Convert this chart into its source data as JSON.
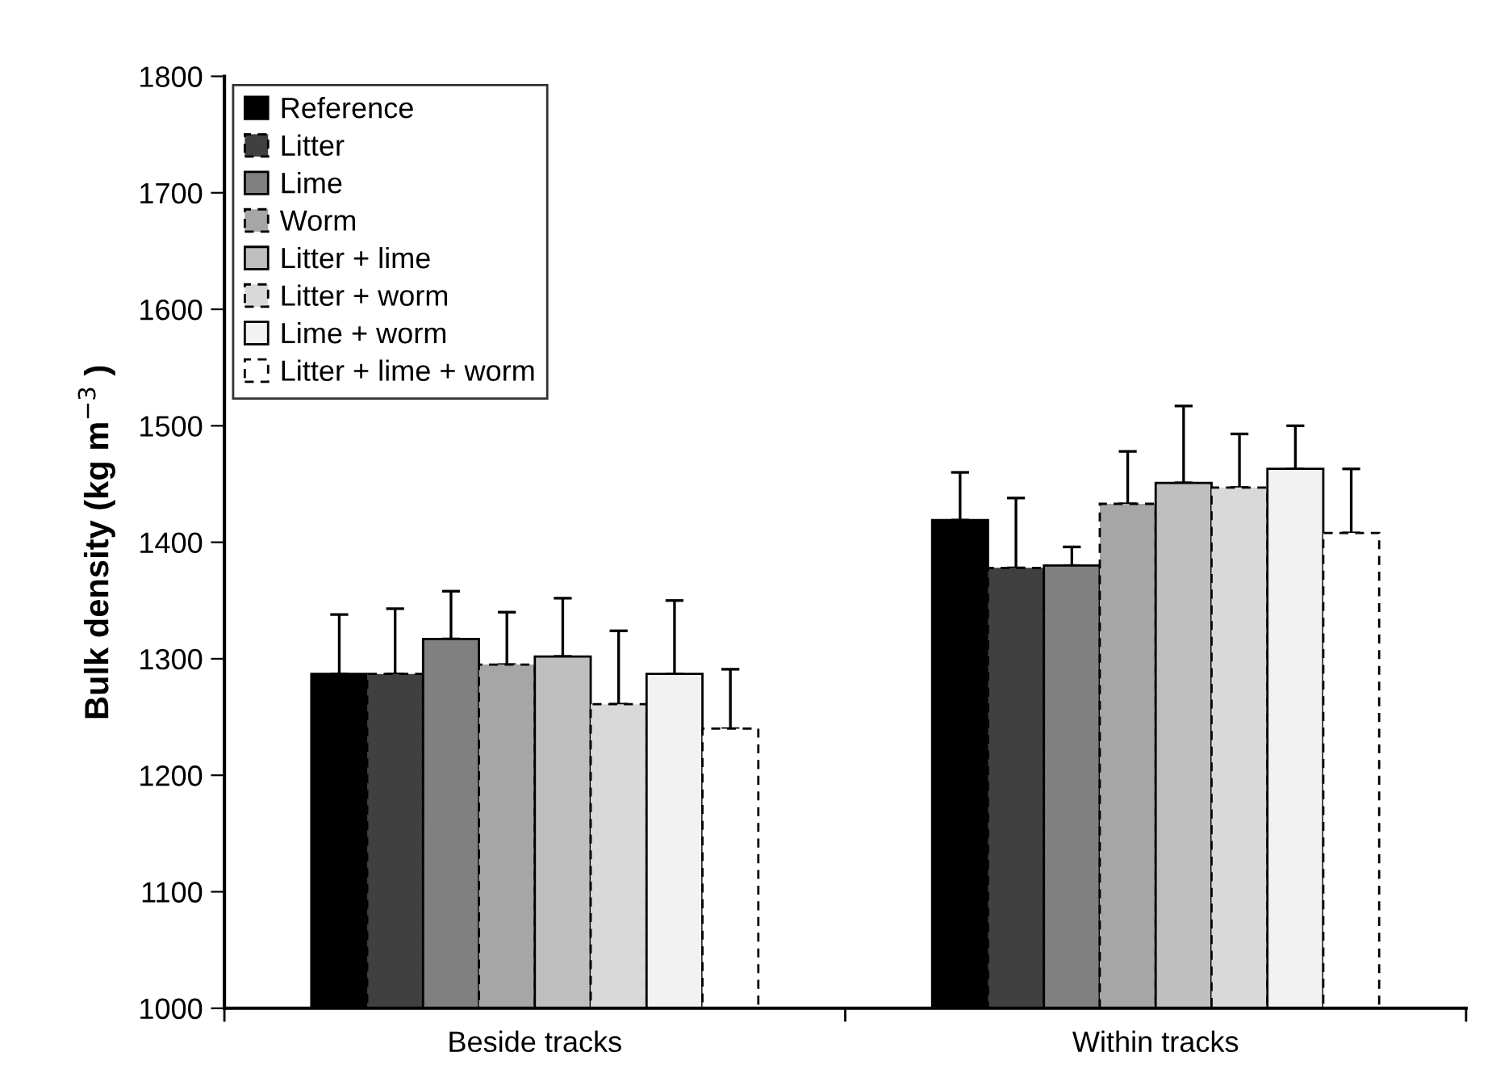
{
  "chart_data": {
    "type": "bar",
    "ylabel": "Bulk density (kg m$^{−3}$ )",
    "categories": [
      "Beside tracks",
      "Within tracks"
    ],
    "series": [
      {
        "name": "Reference",
        "color": "#000000",
        "line_style": "solid",
        "values": [
          1287,
          1419
        ],
        "errors": [
          [
            1287,
            1338
          ],
          [
            1419,
            1460
          ]
        ]
      },
      {
        "name": "Litter",
        "color": "#404040",
        "line_style": "dashed",
        "values": [
          1287,
          1378
        ],
        "errors": [
          [
            1287,
            1343
          ],
          [
            1378,
            1438
          ]
        ]
      },
      {
        "name": "Lime",
        "color": "#808080",
        "line_style": "solid",
        "values": [
          1317,
          1380
        ],
        "errors": [
          [
            1317,
            1358
          ],
          [
            1380,
            1396
          ]
        ]
      },
      {
        "name": "Worm",
        "color": "#a6a6a6",
        "line_style": "dashed",
        "values": [
          1295,
          1433
        ],
        "errors": [
          [
            1295,
            1340
          ],
          [
            1433,
            1478
          ]
        ]
      },
      {
        "name": "Litter + lime",
        "color": "#bfbfbf",
        "line_style": "solid",
        "values": [
          1302,
          1451
        ],
        "errors": [
          [
            1302,
            1352
          ],
          [
            1451,
            1517
          ]
        ]
      },
      {
        "name": "Litter + worm",
        "color": "#d9d9d9",
        "line_style": "dashed",
        "values": [
          1261,
          1447
        ],
        "errors": [
          [
            1261,
            1324
          ],
          [
            1447,
            1493
          ]
        ]
      },
      {
        "name": "Lime + worm",
        "color": "#f2f2f2",
        "line_style": "solid",
        "values": [
          1287,
          1463
        ],
        "errors": [
          [
            1287,
            1350
          ],
          [
            1463,
            1500
          ]
        ]
      },
      {
        "name": "Litter + lime + worm",
        "color": "#ffffff",
        "line_style": "dashed",
        "values": [
          1240,
          1408
        ],
        "errors": [
          [
            1240,
            1291
          ],
          [
            1408,
            1463
          ]
        ]
      }
    ],
    "ylim": [
      1000,
      1800
    ],
    "yticks": [
      1000,
      1100,
      1200,
      1300,
      1400,
      1500,
      1600,
      1700,
      1800
    ],
    "grid": false,
    "legend": "top left"
  }
}
